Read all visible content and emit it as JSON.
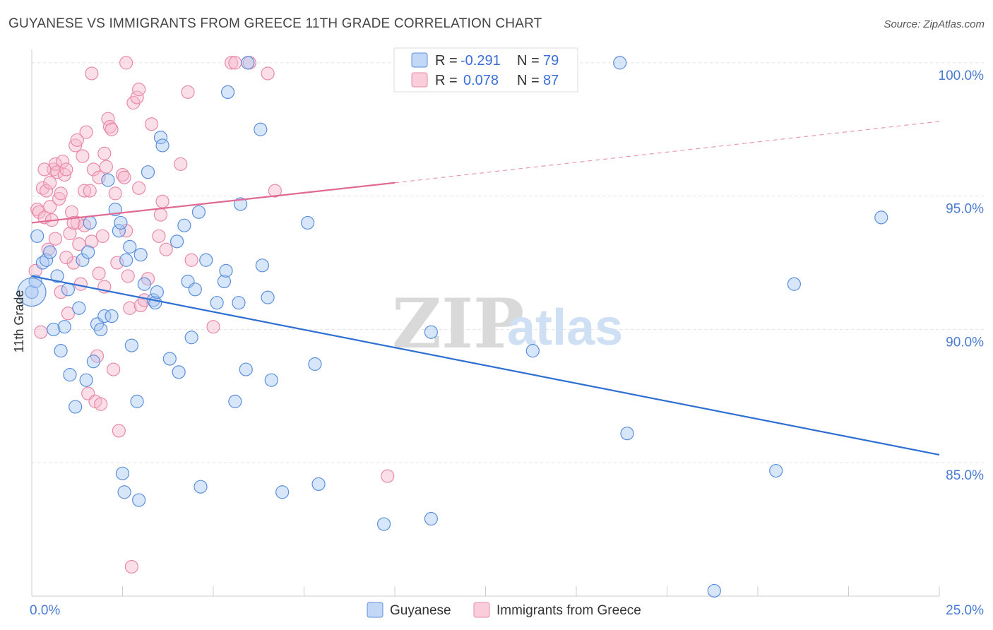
{
  "title": "GUYANESE VS IMMIGRANTS FROM GREECE 11TH GRADE CORRELATION CHART",
  "source": "Source: ZipAtlas.com",
  "watermark": {
    "zip": "ZIP",
    "atlas": "atlas"
  },
  "colors": {
    "blue_fill": "#a9c8f2",
    "blue_stroke": "#5b8fdc",
    "blue_line": "#2f6fd3",
    "pink_fill": "#f7b8cb",
    "pink_stroke": "#e88aa8",
    "pink_line": "#e06a94",
    "grid": "#e3e3e3",
    "tick_label": "#4a7bd0"
  },
  "legend": {
    "rows": [
      {
        "r_label": "R =",
        "r_value": "-0.291",
        "n_label": "N =",
        "n_value": "79",
        "series": "blue"
      },
      {
        "r_label": "R =",
        "r_value": "0.078",
        "n_label": "N =",
        "n_value": "87",
        "series": "pink"
      }
    ]
  },
  "chart_data": {
    "type": "scatter",
    "title": "GUYANESE VS IMMIGRANTS FROM GREECE 11TH GRADE CORRELATION CHART",
    "xlabel": "",
    "ylabel": "11th Grade",
    "xlim": [
      0,
      25
    ],
    "ylim": [
      80.0,
      100.5
    ],
    "x_tick_labels": [
      {
        "value": 0,
        "label": "0.0%"
      },
      {
        "value": 25,
        "label": "25.0%"
      }
    ],
    "y_tick_labels": [
      {
        "value": 100,
        "label": "100.0%"
      },
      {
        "value": 95,
        "label": "95.0%"
      },
      {
        "value": 90,
        "label": "90.0%"
      },
      {
        "value": 85,
        "label": "85.0%"
      }
    ],
    "grid": true,
    "legend_position": "top-center",
    "series": [
      {
        "name": "Guyanese",
        "color": "blue",
        "trend": {
          "x": [
            0,
            25
          ],
          "y": [
            92.0,
            85.3
          ],
          "dashed_x": null
        },
        "points": [
          [
            0.0,
            91.4
          ],
          [
            0.1,
            91.8
          ],
          [
            0.15,
            93.5
          ],
          [
            0.3,
            92.5
          ],
          [
            0.4,
            92.6
          ],
          [
            0.5,
            92.9
          ],
          [
            0.6,
            90.0
          ],
          [
            0.7,
            92.0
          ],
          [
            0.8,
            89.2
          ],
          [
            0.9,
            90.1
          ],
          [
            1.0,
            91.5
          ],
          [
            1.05,
            88.3
          ],
          [
            1.2,
            87.1
          ],
          [
            1.3,
            90.8
          ],
          [
            1.4,
            92.6
          ],
          [
            1.5,
            88.1
          ],
          [
            1.55,
            92.9
          ],
          [
            1.6,
            94.0
          ],
          [
            1.7,
            88.8
          ],
          [
            1.8,
            90.2
          ],
          [
            1.9,
            90.0
          ],
          [
            2.0,
            90.5
          ],
          [
            2.1,
            95.6
          ],
          [
            2.2,
            90.5
          ],
          [
            2.3,
            94.5
          ],
          [
            2.4,
            93.7
          ],
          [
            2.45,
            94.0
          ],
          [
            2.5,
            84.6
          ],
          [
            2.55,
            83.9
          ],
          [
            2.6,
            92.6
          ],
          [
            2.7,
            93.1
          ],
          [
            2.75,
            89.4
          ],
          [
            2.9,
            87.3
          ],
          [
            2.95,
            83.6
          ],
          [
            3.0,
            92.8
          ],
          [
            3.1,
            91.7
          ],
          [
            3.2,
            95.9
          ],
          [
            3.35,
            91.1
          ],
          [
            3.4,
            91.0
          ],
          [
            3.45,
            91.4
          ],
          [
            3.55,
            97.2
          ],
          [
            3.6,
            96.9
          ],
          [
            3.8,
            88.9
          ],
          [
            4.0,
            93.3
          ],
          [
            4.05,
            88.4
          ],
          [
            4.2,
            93.9
          ],
          [
            4.3,
            91.8
          ],
          [
            4.4,
            89.7
          ],
          [
            4.5,
            91.5
          ],
          [
            4.6,
            94.4
          ],
          [
            4.65,
            84.1
          ],
          [
            4.8,
            92.6
          ],
          [
            5.1,
            91.0
          ],
          [
            5.3,
            91.8
          ],
          [
            5.35,
            92.2
          ],
          [
            5.4,
            98.9
          ],
          [
            5.6,
            87.3
          ],
          [
            5.7,
            91.0
          ],
          [
            5.75,
            94.7
          ],
          [
            5.9,
            88.5
          ],
          [
            5.95,
            100.0
          ],
          [
            6.3,
            97.5
          ],
          [
            6.35,
            92.4
          ],
          [
            6.5,
            91.2
          ],
          [
            6.6,
            88.1
          ],
          [
            6.9,
            83.9
          ],
          [
            7.6,
            94.0
          ],
          [
            7.8,
            88.7
          ],
          [
            7.9,
            84.2
          ],
          [
            9.7,
            82.7
          ],
          [
            11.0,
            82.9
          ],
          [
            11.0,
            89.9
          ],
          [
            13.8,
            89.2
          ],
          [
            16.2,
            100.0
          ],
          [
            16.4,
            86.1
          ],
          [
            18.8,
            80.2
          ],
          [
            20.5,
            84.7
          ],
          [
            21.0,
            91.7
          ],
          [
            23.4,
            94.2
          ]
        ]
      },
      {
        "name": "Immigrants from Greece",
        "color": "pink",
        "trend": {
          "x": [
            0,
            10
          ],
          "y": [
            94.0,
            95.5
          ],
          "dashed_x": [
            10,
            25
          ],
          "dashed_y": [
            95.5,
            97.8
          ]
        },
        "points": [
          [
            0.1,
            92.2
          ],
          [
            0.15,
            94.5
          ],
          [
            0.2,
            94.4
          ],
          [
            0.25,
            89.9
          ],
          [
            0.3,
            95.3
          ],
          [
            0.35,
            94.2
          ],
          [
            0.4,
            95.2
          ],
          [
            0.45,
            93.0
          ],
          [
            0.5,
            94.6
          ],
          [
            0.55,
            94.1
          ],
          [
            0.6,
            96.0
          ],
          [
            0.65,
            96.2
          ],
          [
            0.7,
            95.9
          ],
          [
            0.75,
            94.9
          ],
          [
            0.8,
            91.4
          ],
          [
            0.85,
            96.3
          ],
          [
            0.9,
            95.8
          ],
          [
            0.95,
            96.0
          ],
          [
            1.0,
            90.6
          ],
          [
            1.05,
            93.6
          ],
          [
            1.1,
            94.4
          ],
          [
            1.15,
            92.5
          ],
          [
            1.2,
            96.9
          ],
          [
            1.25,
            94.0
          ],
          [
            1.3,
            93.2
          ],
          [
            1.35,
            91.7
          ],
          [
            1.4,
            96.5
          ],
          [
            1.45,
            95.2
          ],
          [
            1.5,
            97.4
          ],
          [
            1.55,
            87.6
          ],
          [
            1.6,
            95.2
          ],
          [
            1.65,
            93.3
          ],
          [
            1.7,
            96.0
          ],
          [
            1.75,
            87.3
          ],
          [
            1.8,
            89.0
          ],
          [
            1.85,
            92.1
          ],
          [
            1.9,
            87.2
          ],
          [
            1.95,
            93.5
          ],
          [
            2.0,
            96.6
          ],
          [
            2.05,
            96.1
          ],
          [
            2.1,
            97.9
          ],
          [
            2.15,
            97.6
          ],
          [
            2.2,
            97.5
          ],
          [
            2.25,
            88.5
          ],
          [
            2.3,
            95.1
          ],
          [
            2.4,
            86.2
          ],
          [
            2.5,
            95.8
          ],
          [
            2.55,
            95.7
          ],
          [
            2.6,
            93.7
          ],
          [
            2.65,
            92.0
          ],
          [
            2.7,
            90.8
          ],
          [
            2.75,
            81.1
          ],
          [
            2.8,
            98.5
          ],
          [
            2.9,
            98.7
          ],
          [
            2.95,
            99.0
          ],
          [
            3.0,
            90.9
          ],
          [
            3.1,
            91.1
          ],
          [
            3.2,
            91.9
          ],
          [
            3.3,
            97.7
          ],
          [
            3.5,
            93.5
          ],
          [
            3.55,
            94.3
          ],
          [
            4.3,
            98.9
          ],
          [
            4.4,
            92.6
          ],
          [
            5.0,
            90.1
          ],
          [
            5.5,
            100.0
          ],
          [
            5.6,
            100.0
          ],
          [
            6.0,
            100.0
          ],
          [
            6.5,
            99.6
          ],
          [
            6.7,
            95.2
          ],
          [
            9.8,
            84.5
          ],
          [
            1.65,
            99.6
          ],
          [
            2.6,
            100.0
          ],
          [
            3.6,
            94.8
          ],
          [
            0.5,
            95.5
          ],
          [
            1.15,
            94.0
          ],
          [
            0.8,
            95.1
          ],
          [
            2.0,
            91.6
          ],
          [
            1.45,
            93.9
          ],
          [
            0.95,
            92.7
          ],
          [
            2.35,
            92.5
          ],
          [
            3.7,
            93.0
          ],
          [
            0.35,
            96.0
          ],
          [
            1.85,
            95.7
          ],
          [
            2.95,
            95.3
          ],
          [
            4.1,
            96.2
          ],
          [
            0.65,
            93.4
          ],
          [
            1.25,
            97.1
          ]
        ]
      }
    ]
  },
  "bottom_legend": [
    {
      "label": "Guyanese",
      "series": "blue"
    },
    {
      "label": "Immigrants from Greece",
      "series": "pink"
    }
  ]
}
